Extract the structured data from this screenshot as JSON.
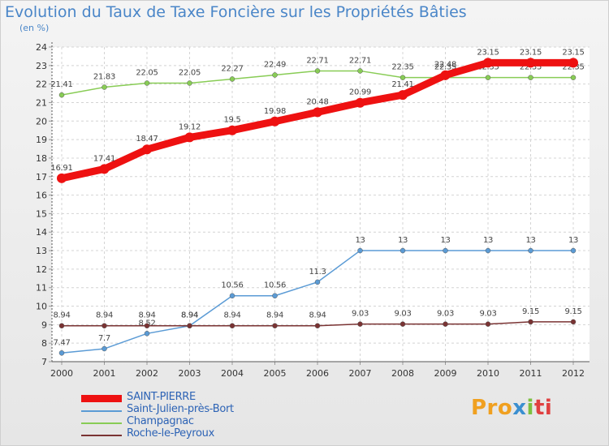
{
  "chart_data": {
    "type": "line",
    "title": "Evolution du Taux de Taxe Foncière sur les Propriétés Bâties",
    "subtitle": "(en %)",
    "categories": [
      "2000",
      "2001",
      "2002",
      "2003",
      "2004",
      "2005",
      "2006",
      "2007",
      "2008",
      "2009",
      "2010",
      "2011",
      "2012"
    ],
    "ylim": [
      7,
      24
    ],
    "yticks": [
      "7",
      "8",
      "9",
      "10",
      "11",
      "12",
      "13",
      "14",
      "15",
      "16",
      "17",
      "18",
      "19",
      "20",
      "21",
      "22",
      "23",
      "24"
    ],
    "series": [
      {
        "name": "SAINT-PIERRE",
        "color": "#ee1111",
        "values": [
          16.91,
          17.41,
          18.47,
          19.12,
          19.5,
          19.98,
          20.48,
          20.99,
          21.41,
          22.48,
          23.15,
          23.15,
          23.15
        ],
        "labels": [
          "16.91",
          "17.41",
          "18.47",
          "19.12",
          "19.5",
          "19.98",
          "20.48",
          "20.99",
          "21.41",
          "22.48",
          "23.15",
          "23.15",
          "23.15"
        ]
      },
      {
        "name": "Saint-Julien-près-Bort",
        "color": "#5b9bd5",
        "values": [
          7.47,
          7.7,
          8.52,
          8.94,
          10.56,
          10.56,
          11.3,
          13,
          13,
          13,
          13,
          13,
          13
        ],
        "labels": [
          "7.47",
          "7.7",
          "8.52",
          "8.94",
          "10.56",
          "10.56",
          "11.3",
          "13",
          "13",
          "13",
          "13",
          "13",
          "13"
        ]
      },
      {
        "name": "Champagnac",
        "color": "#88cc55",
        "values": [
          21.41,
          21.83,
          22.05,
          22.05,
          22.27,
          22.49,
          22.71,
          22.71,
          22.35,
          22.35,
          22.35,
          22.35,
          22.35
        ],
        "labels": [
          "21.41",
          "21.83",
          "22.05",
          "22.05",
          "22.27",
          "22.49",
          "22.71",
          "22.71",
          "22.35",
          "22.35",
          "22.35",
          "22.35",
          "22.35"
        ]
      },
      {
        "name": "Roche-le-Peyroux",
        "color": "#7a3333",
        "values": [
          8.94,
          8.94,
          8.94,
          8.94,
          8.94,
          8.94,
          8.94,
          9.03,
          9.03,
          9.03,
          9.03,
          9.15,
          9.15
        ],
        "labels": [
          "8.94",
          "8.94",
          "8.94",
          "8.94",
          "8.94",
          "8.94",
          "8.94",
          "9.03",
          "9.03",
          "9.03",
          "9.03",
          "9.15",
          "9.15"
        ]
      }
    ]
  },
  "logo": {
    "p1": "Pro",
    "p2": "x",
    "p3": "i",
    "p4": "ti"
  }
}
